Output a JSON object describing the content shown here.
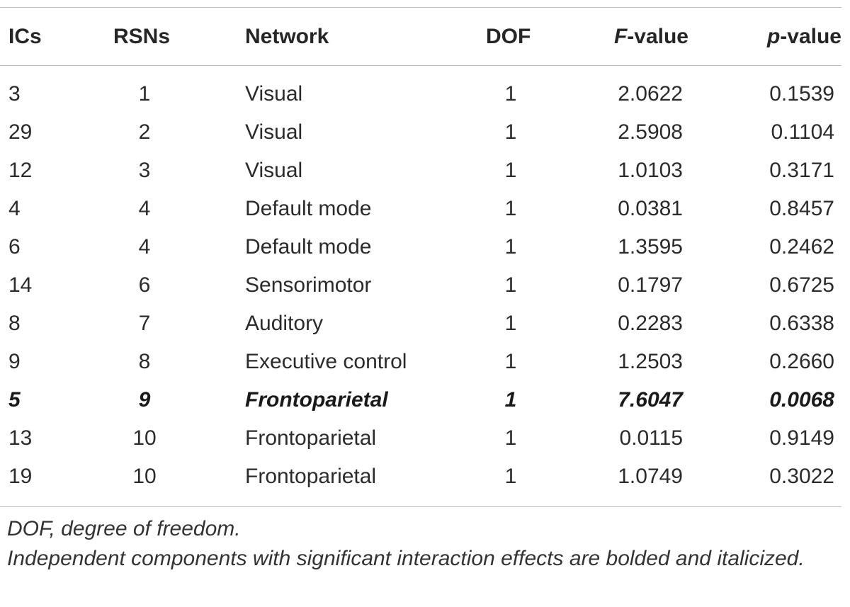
{
  "table": {
    "headers": {
      "ics": "ICs",
      "rsns": "RSNs",
      "network": "Network",
      "dof": "DOF",
      "f_value_var": "F",
      "f_value_rest": "-value",
      "p_value_var": "p",
      "p_value_rest": "-value"
    },
    "rows": [
      {
        "ic": "3",
        "rsn": "1",
        "network": "Visual",
        "dof": "1",
        "f": "2.0622",
        "p": "0.1539",
        "significant": false
      },
      {
        "ic": "29",
        "rsn": "2",
        "network": "Visual",
        "dof": "1",
        "f": "2.5908",
        "p": "0.1104",
        "significant": false
      },
      {
        "ic": "12",
        "rsn": "3",
        "network": "Visual",
        "dof": "1",
        "f": "1.0103",
        "p": "0.3171",
        "significant": false
      },
      {
        "ic": "4",
        "rsn": "4",
        "network": "Default mode",
        "dof": "1",
        "f": "0.0381",
        "p": "0.8457",
        "significant": false
      },
      {
        "ic": "6",
        "rsn": "4",
        "network": "Default mode",
        "dof": "1",
        "f": "1.3595",
        "p": "0.2462",
        "significant": false
      },
      {
        "ic": "14",
        "rsn": "6",
        "network": "Sensorimotor",
        "dof": "1",
        "f": "0.1797",
        "p": "0.6725",
        "significant": false
      },
      {
        "ic": "8",
        "rsn": "7",
        "network": "Auditory",
        "dof": "1",
        "f": "0.2283",
        "p": "0.6338",
        "significant": false
      },
      {
        "ic": "9",
        "rsn": "8",
        "network": "Executive control",
        "dof": "1",
        "f": "1.2503",
        "p": "0.2660",
        "significant": false
      },
      {
        "ic": "5",
        "rsn": "9",
        "network": "Frontoparietal",
        "dof": "1",
        "f": "7.6047",
        "p": "0.0068",
        "significant": true
      },
      {
        "ic": "13",
        "rsn": "10",
        "network": "Frontoparietal",
        "dof": "1",
        "f": "0.0115",
        "p": "0.9149",
        "significant": false
      },
      {
        "ic": "19",
        "rsn": "10",
        "network": "Frontoparietal",
        "dof": "1",
        "f": "1.0749",
        "p": "0.3022",
        "significant": false
      }
    ]
  },
  "footnotes": {
    "dof_definition": "DOF, degree of freedom.",
    "significance_note": "Independent components with significant interaction effects are bolded and italicized."
  },
  "colors": {
    "text": "#2b2b2b",
    "rule": "#bdbdbd",
    "background": "#ffffff"
  }
}
